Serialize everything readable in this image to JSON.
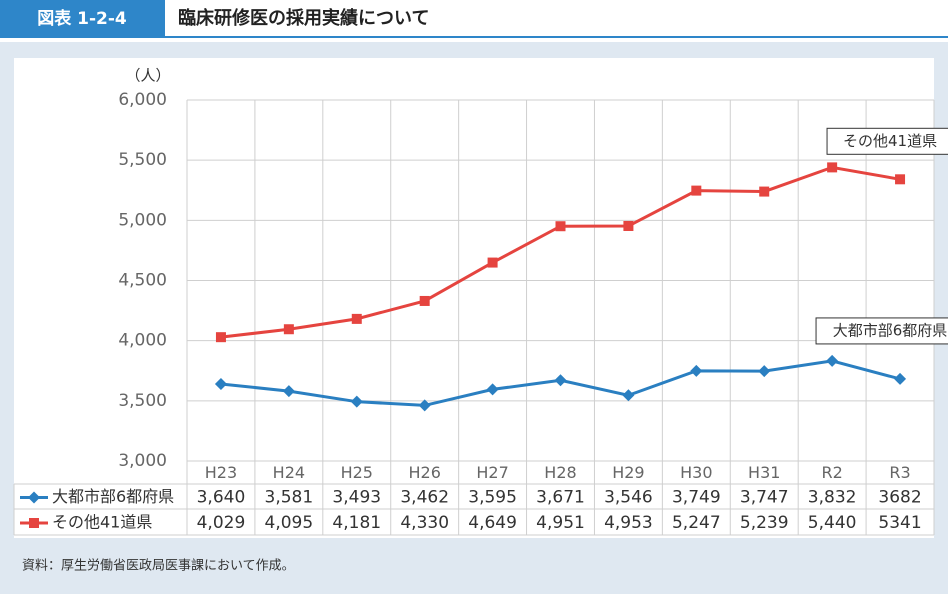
{
  "figure_label": "図表 1-2-4",
  "source": "資料：厚生労働省医政局医事課において作成。",
  "chart_data": {
    "type": "line",
    "title": "臨床研修医の採用実績について",
    "y_label": "（人）",
    "categories": [
      "H23",
      "H24",
      "H25",
      "H26",
      "H27",
      "H28",
      "H29",
      "H30",
      "H31",
      "R2",
      "R3"
    ],
    "series": [
      {
        "name": "大都市部6都府県",
        "color": "#2a7fc1",
        "marker": "diamond",
        "values": [
          3640,
          3581,
          3493,
          3462,
          3595,
          3671,
          3546,
          3749,
          3747,
          3832,
          3682
        ],
        "value_labels": [
          "3,640",
          "3,581",
          "3,493",
          "3,462",
          "3,595",
          "3,671",
          "3,546",
          "3,749",
          "3,747",
          "3,832",
          "3682"
        ]
      },
      {
        "name": "その他41道県",
        "color": "#e5443f",
        "marker": "square",
        "values": [
          4029,
          4095,
          4181,
          4330,
          4649,
          4951,
          4953,
          5247,
          5239,
          5440,
          5341
        ],
        "value_labels": [
          "4,029",
          "4,095",
          "4,181",
          "4,330",
          "4,649",
          "4,951",
          "4,953",
          "5,247",
          "5,239",
          "5,440",
          "5341"
        ]
      }
    ],
    "ylim": [
      3000,
      6000
    ],
    "yticks": [
      {
        "value": 3000,
        "label": "3,000"
      },
      {
        "value": 3500,
        "label": "3,500"
      },
      {
        "value": 4000,
        "label": "4,000"
      },
      {
        "value": 4500,
        "label": "4,500"
      },
      {
        "value": 5000,
        "label": "5,000"
      },
      {
        "value": 5500,
        "label": "5,500"
      },
      {
        "value": 6000,
        "label": "6,000"
      }
    ],
    "grid": true
  }
}
